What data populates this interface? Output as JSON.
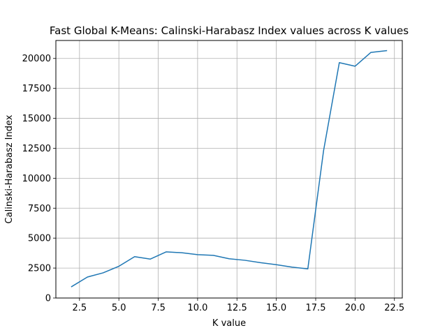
{
  "chart_data": {
    "type": "line",
    "title": "Fast Global K-Means: Calinski-Harabasz Index values across K values",
    "xlabel": "K value",
    "ylabel": "Calinski-Harabasz Index",
    "xlim": [
      1.0,
      23.0
    ],
    "ylim": [
      0,
      21500
    ],
    "xticks": [
      2.5,
      5.0,
      7.5,
      10.0,
      12.5,
      15.0,
      17.5,
      20.0,
      22.5
    ],
    "xtick_labels": [
      "2.5",
      "5.0",
      "7.5",
      "10.0",
      "12.5",
      "15.0",
      "17.5",
      "20.0",
      "22.5"
    ],
    "yticks": [
      0,
      2500,
      5000,
      7500,
      10000,
      12500,
      15000,
      17500,
      20000
    ],
    "ytick_labels": [
      "0",
      "2500",
      "5000",
      "7500",
      "10000",
      "12500",
      "15000",
      "17500",
      "20000"
    ],
    "grid": true,
    "line_color": "#1f77b4",
    "series": [
      {
        "x": [
          2,
          3,
          4,
          5,
          6,
          7,
          8,
          9,
          10,
          11,
          12,
          13,
          14,
          15,
          16,
          17,
          18,
          19,
          20,
          21,
          22
        ],
        "values": [
          950,
          1750,
          2100,
          2650,
          3450,
          3250,
          3850,
          3780,
          3620,
          3560,
          3280,
          3150,
          2950,
          2780,
          2580,
          2430,
          12300,
          19650,
          19350,
          20500,
          20650
        ]
      }
    ]
  }
}
